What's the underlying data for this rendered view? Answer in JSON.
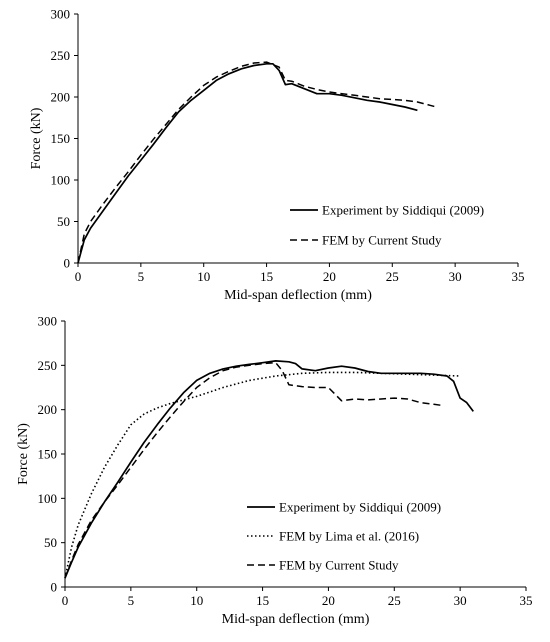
{
  "chart_data": [
    {
      "type": "line",
      "title": "",
      "xlabel": "Mid-span deflection (mm)",
      "ylabel": "Force (kN)",
      "xlim": [
        0,
        35
      ],
      "ylim": [
        0,
        300
      ],
      "xticks": [
        0,
        5,
        10,
        15,
        20,
        25,
        30,
        35
      ],
      "yticks": [
        0,
        50,
        100,
        150,
        200,
        250,
        300
      ],
      "legend_position": "bottom-right",
      "series": [
        {
          "name": "Experiment by Siddiqui (2009)",
          "style": "solid",
          "x": [
            0,
            0.5,
            1,
            2,
            3,
            4,
            5,
            6,
            7,
            8,
            9,
            10,
            11,
            12,
            13,
            14,
            15,
            15.5,
            16,
            16.5,
            17,
            17.5,
            18,
            19,
            20,
            21,
            22,
            23,
            24,
            25,
            26,
            27
          ],
          "y": [
            0,
            28,
            42,
            63,
            84,
            105,
            124,
            143,
            163,
            182,
            196,
            208,
            220,
            228,
            234,
            238,
            240,
            240,
            232,
            215,
            216,
            213,
            210,
            204,
            204,
            202,
            199,
            196,
            194,
            191,
            188,
            184
          ]
        },
        {
          "name": "FEM by Current Study",
          "style": "dashed",
          "x": [
            0,
            0.5,
            1,
            2,
            3,
            4,
            5,
            6,
            7,
            8,
            9,
            10,
            11,
            12,
            13,
            14,
            15,
            16,
            16.5,
            17,
            18,
            19,
            20,
            21,
            22,
            23,
            24,
            25,
            26,
            27,
            28,
            28.5
          ],
          "y": [
            0,
            35,
            50,
            71,
            91,
            110,
            130,
            149,
            167,
            185,
            200,
            214,
            224,
            231,
            237,
            241,
            242,
            236,
            220,
            219,
            213,
            209,
            206,
            204,
            202,
            200,
            198,
            197,
            196,
            194,
            190,
            188
          ]
        }
      ]
    },
    {
      "type": "line",
      "title": "",
      "xlabel": "Mid-span deflection (mm)",
      "ylabel": "Force (kN)",
      "xlim": [
        0,
        35
      ],
      "ylim": [
        0,
        300
      ],
      "xticks": [
        0,
        5,
        10,
        15,
        20,
        25,
        30,
        35
      ],
      "yticks": [
        0,
        50,
        100,
        150,
        200,
        250,
        300
      ],
      "legend_position": "bottom-right",
      "series": [
        {
          "name": "Experiment by Siddiqui (2009)",
          "style": "solid",
          "x": [
            0,
            0.5,
            1,
            2,
            3,
            4,
            5,
            6,
            7,
            8,
            9,
            10,
            11,
            12,
            13,
            14,
            15,
            16,
            17,
            17.5,
            18,
            19,
            20,
            21,
            22,
            23,
            24,
            25,
            26,
            27,
            28,
            29,
            29.5,
            30,
            30.5,
            31
          ],
          "y": [
            10,
            28,
            45,
            72,
            96,
            118,
            141,
            163,
            183,
            202,
            219,
            233,
            241,
            246,
            249,
            251,
            253,
            255,
            254,
            252,
            246,
            244,
            247,
            249,
            247,
            243,
            241,
            241,
            241,
            241,
            240,
            238,
            232,
            213,
            208,
            198
          ]
        },
        {
          "name": "FEM by Lima et al. (2016)",
          "style": "dotted",
          "x": [
            0,
            0.5,
            1,
            2,
            3,
            4,
            5,
            6,
            7,
            8,
            9,
            10,
            12,
            14,
            16,
            18,
            20,
            22,
            24,
            26,
            28,
            30
          ],
          "y": [
            10,
            45,
            70,
            105,
            135,
            160,
            183,
            195,
            202,
            207,
            211,
            215,
            225,
            233,
            238,
            241,
            242,
            242,
            241,
            240,
            239,
            238
          ]
        },
        {
          "name": "FEM by Current Study",
          "style": "dashed",
          "x": [
            0,
            0.5,
            1,
            2,
            3,
            4,
            5,
            6,
            7,
            8,
            9,
            10,
            11,
            12,
            13,
            14,
            15,
            16,
            16.5,
            17,
            18,
            19,
            20,
            21,
            22,
            23,
            24,
            25,
            26,
            27,
            28,
            28.5
          ],
          "y": [
            10,
            30,
            48,
            75,
            96,
            115,
            135,
            155,
            174,
            192,
            209,
            225,
            236,
            244,
            248,
            250,
            252,
            253,
            244,
            228,
            226,
            225,
            225,
            210,
            212,
            211,
            212,
            213,
            212,
            208,
            206,
            205
          ]
        }
      ]
    }
  ]
}
